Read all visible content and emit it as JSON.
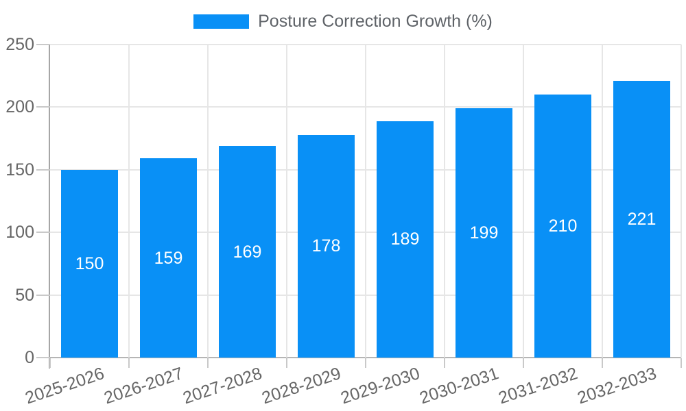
{
  "legend": {
    "label": "Posture Correction Growth (%)"
  },
  "chart_data": {
    "type": "bar",
    "title": "Posture Correction Growth (%)",
    "categories": [
      "2025-2026",
      "2026-2027",
      "2027-2028",
      "2028-2029",
      "2029-2030",
      "2030-2031",
      "2031-2032",
      "2032-2033"
    ],
    "values": [
      150,
      159,
      169,
      178,
      189,
      199,
      210,
      221
    ],
    "xlabel": "",
    "ylabel": "",
    "ylim": [
      0,
      250
    ],
    "yticks": [
      0,
      50,
      100,
      150,
      200,
      250
    ],
    "grid": "on",
    "legend_position": "top-center",
    "value_labels": "inside-center-white",
    "colors": {
      "bar": "#0990f6",
      "grid": "#e6e6e6",
      "baseline": "#b5b5b5",
      "axis": "#a6a6a6",
      "tick": "#c9c9c9",
      "text": "#666666",
      "bar_label": "#ffffff",
      "background": "#ffffff"
    }
  }
}
